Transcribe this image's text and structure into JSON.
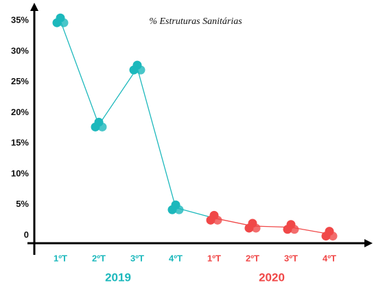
{
  "chart_data": {
    "type": "line",
    "title": "% Estruturas Sanitárias",
    "groups": [
      {
        "label": "2019",
        "color": "#1cb8bc",
        "categories": [
          "1ºT",
          "2ºT",
          "3ºT",
          "4ºT"
        ],
        "values": [
          35,
          18,
          27.3,
          4.5
        ]
      },
      {
        "label": "2020",
        "color": "#f04848",
        "categories": [
          "1ºT",
          "2ºT",
          "3ºT",
          "4ºT"
        ],
        "values": [
          2.8,
          1.5,
          1.3,
          0.2
        ]
      }
    ],
    "ylim": [
      -1.3,
      36.7
    ],
    "yticks": [
      0,
      {
        "value": 5,
        "label": "5%"
      },
      {
        "value": 10,
        "label": "10%"
      },
      {
        "value": 15,
        "label": "15%"
      },
      {
        "value": 20,
        "label": "20%"
      },
      {
        "value": 25,
        "label": "25%"
      },
      {
        "value": 30,
        "label": "30%"
      },
      {
        "value": 35,
        "label": "35%"
      }
    ]
  }
}
